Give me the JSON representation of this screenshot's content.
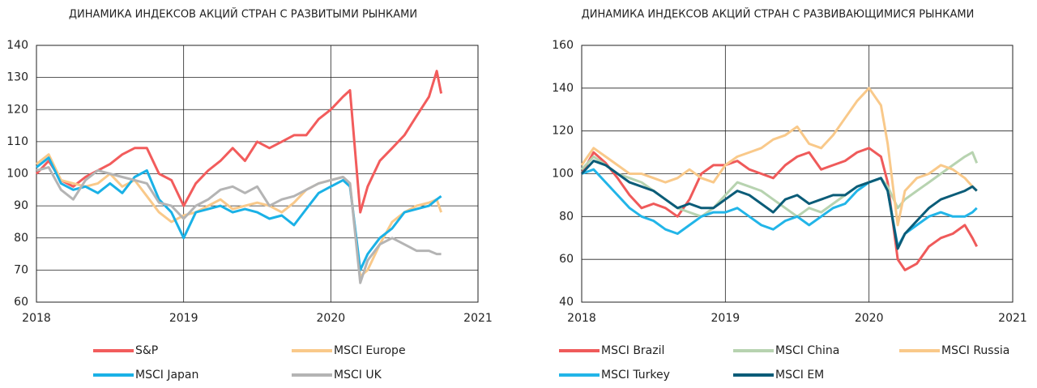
{
  "chart_data": [
    {
      "type": "line",
      "title": "ДИНАМИКА ИНДЕКСОВ АКЦИЙ СТРАН С РАЗВИТЫМИ РЫНКАМИ",
      "x": [
        2018.0,
        2018.083,
        2018.167,
        2018.25,
        2018.333,
        2018.417,
        2018.5,
        2018.583,
        2018.667,
        2018.75,
        2018.833,
        2018.917,
        2019.0,
        2019.083,
        2019.167,
        2019.25,
        2019.333,
        2019.417,
        2019.5,
        2019.583,
        2019.667,
        2019.75,
        2019.833,
        2019.917,
        2020.0,
        2020.083,
        2020.13,
        2020.2,
        2020.25,
        2020.333,
        2020.417,
        2020.5,
        2020.583,
        2020.667,
        2020.72,
        2020.75
      ],
      "series": [
        {
          "name": "S&P",
          "color": "#f25c5c",
          "values": [
            100,
            104,
            98,
            96,
            99,
            101,
            103,
            106,
            108,
            108,
            100,
            98,
            90,
            97,
            101,
            104,
            108,
            104,
            110,
            108,
            110,
            112,
            112,
            117,
            120,
            124,
            126,
            88,
            96,
            104,
            108,
            112,
            118,
            124,
            132,
            125
          ]
        },
        {
          "name": "MSCI Europe",
          "color": "#f9c98a",
          "values": [
            103,
            106,
            98,
            97,
            96,
            97,
            100,
            96,
            98,
            93,
            88,
            85,
            87,
            88,
            90,
            92,
            89,
            90,
            91,
            90,
            88,
            91,
            95,
            97,
            98,
            99,
            97,
            68,
            70,
            78,
            85,
            88,
            90,
            91,
            92,
            88
          ]
        },
        {
          "name": "MSCI Japan",
          "color": "#1ab1e6",
          "values": [
            102,
            105,
            97,
            95,
            96,
            94,
            97,
            94,
            99,
            101,
            92,
            88,
            80,
            88,
            89,
            90,
            88,
            89,
            88,
            86,
            87,
            84,
            89,
            94,
            96,
            98,
            96,
            70,
            75,
            80,
            83,
            88,
            89,
            90,
            92,
            93
          ]
        },
        {
          "name": "MSCI UK",
          "color": "#b4b4b4",
          "values": [
            101,
            102,
            95,
            92,
            98,
            101,
            100,
            99,
            98,
            97,
            91,
            90,
            86,
            90,
            92,
            95,
            96,
            94,
            96,
            90,
            92,
            93,
            95,
            97,
            98,
            99,
            97,
            66,
            73,
            78,
            80,
            78,
            76,
            76,
            75,
            75
          ]
        }
      ],
      "xlim": [
        2018,
        2021
      ],
      "xticks": [
        2018,
        2019,
        2020,
        2021
      ],
      "ylim": [
        60,
        140
      ],
      "yticks": [
        60,
        70,
        80,
        90,
        100,
        110,
        120,
        130,
        140
      ],
      "grid": true
    },
    {
      "type": "line",
      "title": "ДИНАМИКА ИНДЕКСОВ АКЦИЙ СТРАН С РАЗВИВАЮЩИМИСЯ РЫНКАМИ",
      "x": [
        2018.0,
        2018.083,
        2018.167,
        2018.25,
        2018.333,
        2018.417,
        2018.5,
        2018.583,
        2018.667,
        2018.75,
        2018.833,
        2018.917,
        2019.0,
        2019.083,
        2019.167,
        2019.25,
        2019.333,
        2019.417,
        2019.5,
        2019.583,
        2019.667,
        2019.75,
        2019.833,
        2019.917,
        2020.0,
        2020.083,
        2020.13,
        2020.2,
        2020.25,
        2020.333,
        2020.417,
        2020.5,
        2020.583,
        2020.667,
        2020.72,
        2020.75
      ],
      "series": [
        {
          "name": "MSCI Brazil",
          "color": "#ef5a5a",
          "values": [
            100,
            110,
            105,
            98,
            90,
            84,
            86,
            84,
            80,
            88,
            100,
            104,
            104,
            106,
            102,
            100,
            98,
            104,
            108,
            110,
            102,
            104,
            106,
            110,
            112,
            108,
            96,
            60,
            55,
            58,
            66,
            70,
            72,
            76,
            70,
            66
          ]
        },
        {
          "name": "MSCI China",
          "color": "#b7d3b0",
          "values": [
            102,
            108,
            104,
            100,
            98,
            96,
            92,
            88,
            84,
            82,
            80,
            84,
            90,
            96,
            94,
            92,
            88,
            84,
            80,
            84,
            82,
            86,
            90,
            94,
            96,
            98,
            94,
            84,
            88,
            92,
            96,
            100,
            104,
            108,
            110,
            105
          ]
        },
        {
          "name": "MSCI Russia",
          "color": "#f9c98a",
          "values": [
            104,
            112,
            108,
            104,
            100,
            100,
            98,
            96,
            98,
            102,
            98,
            96,
            104,
            108,
            110,
            112,
            116,
            118,
            122,
            114,
            112,
            118,
            126,
            134,
            140,
            132,
            114,
            76,
            92,
            98,
            100,
            104,
            102,
            98,
            94,
            92
          ]
        },
        {
          "name": "MSCI Turkey",
          "color": "#22b5e8",
          "values": [
            100,
            102,
            96,
            90,
            84,
            80,
            78,
            74,
            72,
            76,
            80,
            82,
            82,
            84,
            80,
            76,
            74,
            78,
            80,
            76,
            80,
            84,
            86,
            92,
            96,
            98,
            92,
            66,
            72,
            76,
            80,
            82,
            80,
            80,
            82,
            84
          ]
        },
        {
          "name": "MSCI EM",
          "color": "#0b5c78",
          "values": [
            100,
            106,
            104,
            100,
            96,
            94,
            92,
            88,
            84,
            86,
            84,
            84,
            88,
            92,
            90,
            86,
            82,
            88,
            90,
            86,
            88,
            90,
            90,
            94,
            96,
            98,
            92,
            65,
            72,
            78,
            84,
            88,
            90,
            92,
            94,
            92
          ]
        }
      ],
      "xlim": [
        2018,
        2021
      ],
      "xticks": [
        2018,
        2019,
        2020,
        2021
      ],
      "ylim": [
        40,
        160
      ],
      "yticks": [
        40,
        60,
        80,
        100,
        120,
        140,
        160
      ],
      "grid": true
    }
  ]
}
